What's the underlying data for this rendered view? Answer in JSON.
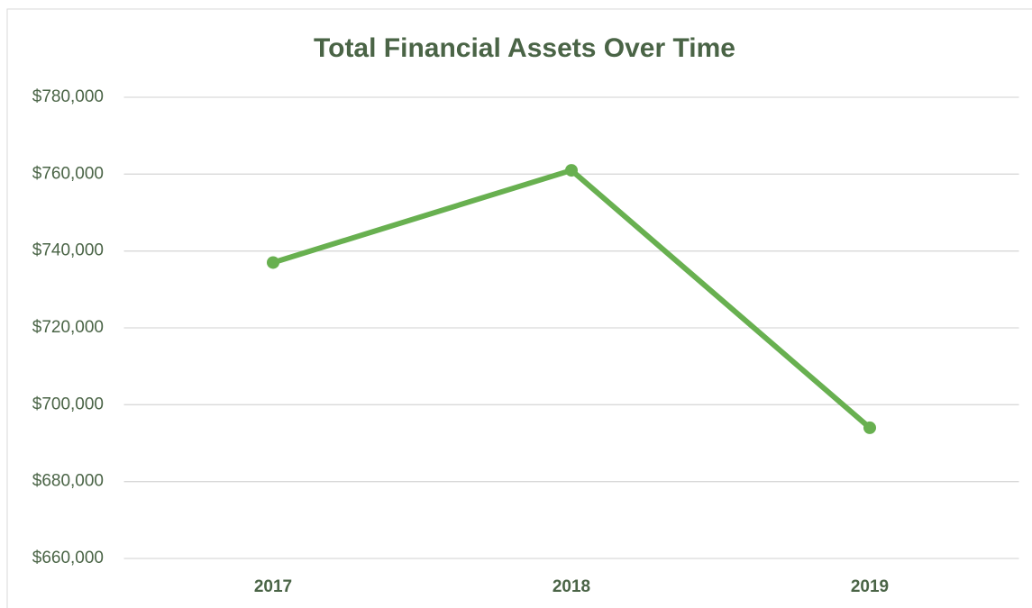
{
  "chart_data": {
    "type": "line",
    "title": "Total Financial Assets Over Time",
    "categories": [
      "2017",
      "2018",
      "2019"
    ],
    "series": [
      {
        "name": "Total Financial Assets",
        "color": "#68b050",
        "values": [
          737000,
          761000,
          694000
        ]
      }
    ],
    "ylim": [
      660000,
      780000
    ],
    "yticks": [
      {
        "value": 660000,
        "label": "$660,000"
      },
      {
        "value": 680000,
        "label": "$680,000"
      },
      {
        "value": 700000,
        "label": "$700,000"
      },
      {
        "value": 720000,
        "label": "$720,000"
      },
      {
        "value": 740000,
        "label": "$740,000"
      },
      {
        "value": 760000,
        "label": "$760,000"
      },
      {
        "value": 780000,
        "label": "$780,000"
      }
    ],
    "grid": true
  }
}
